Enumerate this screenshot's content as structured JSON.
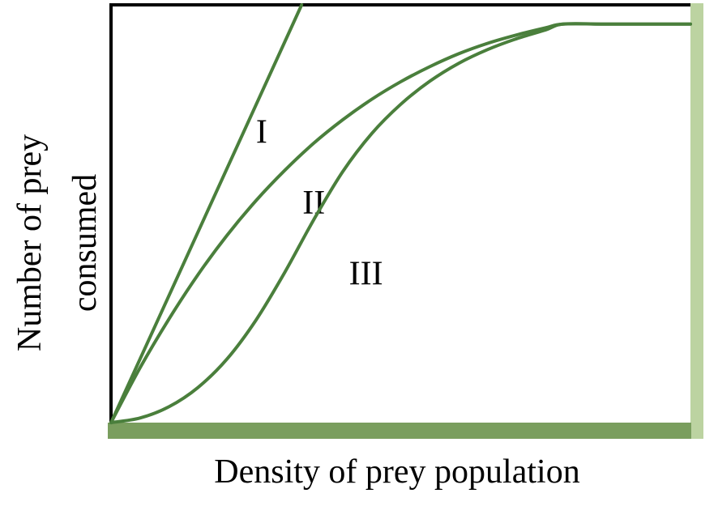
{
  "chart_data": {
    "type": "line",
    "title": "",
    "xlabel": "Density of prey population",
    "ylabel_lines": [
      "Number of prey",
      "consumed"
    ],
    "xlim": [
      0,
      1
    ],
    "ylim": [
      0,
      1
    ],
    "grid": false,
    "legend": "none",
    "ticks": "none",
    "series": [
      {
        "name": "I",
        "x": [
          0,
          0.329
        ],
        "y": [
          0,
          1.0
        ]
      },
      {
        "name": "II",
        "x": [
          0,
          0.05,
          0.1,
          0.15,
          0.2,
          0.25,
          0.3,
          0.35,
          0.4,
          0.45,
          0.5,
          0.55,
          0.6,
          0.65,
          0.7,
          0.75,
          0.78,
          0.85,
          0.9,
          0.95,
          1.0
        ],
        "y": [
          0,
          0.131,
          0.248,
          0.354,
          0.448,
          0.531,
          0.604,
          0.669,
          0.725,
          0.774,
          0.816,
          0.852,
          0.883,
          0.908,
          0.928,
          0.945,
          0.954,
          0.954,
          0.954,
          0.954,
          0.954
        ]
      },
      {
        "name": "III",
        "x": [
          0,
          0.05,
          0.1,
          0.15,
          0.2,
          0.25,
          0.3,
          0.35,
          0.4,
          0.45,
          0.5,
          0.55,
          0.6,
          0.65,
          0.7,
          0.75,
          0.78,
          0.85,
          0.9,
          0.95,
          1.0
        ],
        "y": [
          0,
          0.011,
          0.038,
          0.084,
          0.152,
          0.245,
          0.36,
          0.486,
          0.601,
          0.692,
          0.762,
          0.817,
          0.86,
          0.893,
          0.919,
          0.94,
          0.954,
          0.954,
          0.954,
          0.954,
          0.954
        ]
      }
    ],
    "colors": {
      "curve": "#4a7f3c",
      "x_axis_bar": "#7a9e5e",
      "right_edge_bar": "#bcd3a1",
      "frame": "#000000",
      "text": "#000000"
    }
  }
}
